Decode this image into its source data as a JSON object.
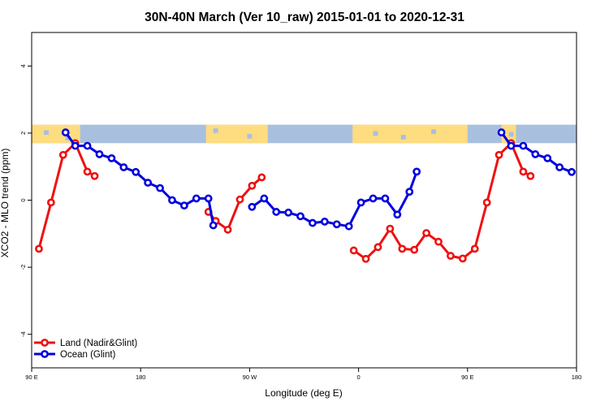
{
  "chart_data": {
    "type": "line",
    "title": "30N-40N March (Ver 10_raw)   2015-01-01 to 2020-12-31",
    "xlabel": "Longitude (deg E)",
    "ylabel": "XCO2 - MLO trend (ppm)",
    "xlim": [
      90,
      540
    ],
    "ylim": [
      -5,
      5
    ],
    "x_ticks": [
      {
        "value": 90,
        "label": "90 E"
      },
      {
        "value": 180,
        "label": "180"
      },
      {
        "value": 270,
        "label": "90 W"
      },
      {
        "value": 360,
        "label": "0"
      },
      {
        "value": 450,
        "label": "90 E"
      },
      {
        "value": 540,
        "label": "180"
      }
    ],
    "y_ticks": [
      {
        "value": -4,
        "label": "-4"
      },
      {
        "value": -2,
        "label": "-2"
      },
      {
        "value": 0,
        "label": "0"
      },
      {
        "value": 2,
        "label": "2"
      },
      {
        "value": 4,
        "label": "4"
      }
    ],
    "land_strip": {
      "ymin": 1.7,
      "ymax": 2.25,
      "ocean_color": "#a9bfde",
      "land_color": "#fedc80"
    },
    "legend": {
      "position": "bottom-left"
    },
    "series": [
      {
        "name": "Land (Nadir&Glint)",
        "color": "#ee1111",
        "segments": [
          [
            [
              96,
              -1.45
            ],
            [
              106,
              -0.07
            ],
            [
              116,
              1.35
            ],
            [
              126,
              1.7
            ],
            [
              136,
              0.85
            ],
            [
              142,
              0.72
            ]
          ],
          [
            [
              236,
              -0.35
            ],
            [
              242,
              -0.62
            ],
            [
              252,
              -0.88
            ],
            [
              262,
              0.02
            ],
            [
              272,
              0.43
            ],
            [
              280,
              0.68
            ]
          ],
          [
            [
              356,
              -1.5
            ],
            [
              366,
              -1.75
            ],
            [
              376,
              -1.4
            ],
            [
              386,
              -0.85
            ],
            [
              396,
              -1.45
            ],
            [
              406,
              -1.48
            ],
            [
              416,
              -0.98
            ],
            [
              426,
              -1.24
            ],
            [
              436,
              -1.66
            ],
            [
              446,
              -1.74
            ],
            [
              456,
              -1.45
            ],
            [
              466,
              -0.07
            ],
            [
              476,
              1.35
            ],
            [
              486,
              1.7
            ],
            [
              496,
              0.85
            ],
            [
              502,
              0.72
            ]
          ]
        ]
      },
      {
        "name": "Ocean (Glint)",
        "color": "#0000dd",
        "segments": [
          [
            [
              118,
              2.02
            ],
            [
              126,
              1.62
            ],
            [
              136,
              1.62
            ],
            [
              146,
              1.37
            ],
            [
              156,
              1.25
            ],
            [
              166,
              0.98
            ],
            [
              176,
              0.84
            ],
            [
              186,
              0.52
            ],
            [
              196,
              0.36
            ],
            [
              206,
              0.0
            ],
            [
              216,
              -0.16
            ],
            [
              226,
              0.05
            ],
            [
              236,
              0.05
            ],
            [
              240,
              -0.75
            ]
          ],
          [
            [
              272,
              -0.2
            ],
            [
              282,
              0.05
            ],
            [
              292,
              -0.35
            ],
            [
              302,
              -0.37
            ],
            [
              312,
              -0.48
            ],
            [
              322,
              -0.68
            ],
            [
              332,
              -0.64
            ],
            [
              342,
              -0.72
            ],
            [
              352,
              -0.78
            ],
            [
              362,
              -0.07
            ],
            [
              372,
              0.05
            ],
            [
              382,
              0.05
            ],
            [
              392,
              -0.43
            ],
            [
              402,
              0.25
            ],
            [
              408,
              0.85
            ]
          ],
          [
            [
              478,
              2.02
            ],
            [
              486,
              1.62
            ],
            [
              496,
              1.62
            ],
            [
              506,
              1.37
            ],
            [
              516,
              1.25
            ],
            [
              526,
              0.98
            ],
            [
              536,
              0.84
            ]
          ]
        ]
      }
    ]
  }
}
